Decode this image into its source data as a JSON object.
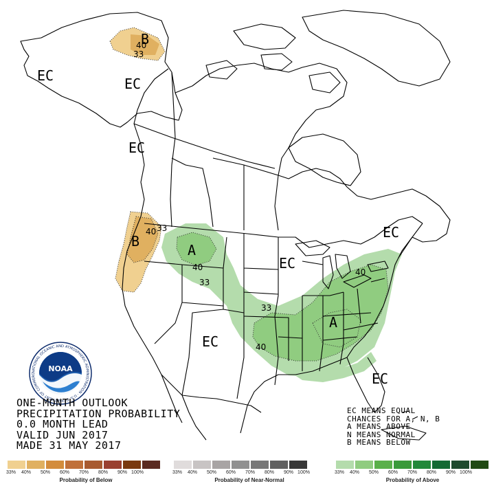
{
  "labels": {
    "ec_alaska_west": "EC",
    "ec_alaska": "EC",
    "ec_bc_coast": "EC",
    "ec_midwest": "EC",
    "ec_southwest": "EC",
    "ec_maine": "EC",
    "ec_florida": "EC",
    "b_alaska": "B",
    "b_northwest": "B",
    "a_montana": "A",
    "a_southeast": "A"
  },
  "contours": {
    "ak_40": "40",
    "ak_33": "33",
    "nw_40": "40",
    "nw_33": "33",
    "mt_40": "40",
    "plains_33": "33",
    "central_33": "33",
    "ne_40": "40",
    "se_40": "40"
  },
  "title_lines": [
    "ONE-MONTH OUTLOOK",
    "PRECIPITATION PROBABILITY",
    "0.0 MONTH LEAD",
    "VALID JUN 2017",
    "MADE 31 MAY 2017"
  ],
  "key_lines": [
    "EC MEANS EQUAL",
    "CHANCES FOR A, N, B",
    "A MEANS ABOVE",
    "N MEANS NORMAL",
    "B MEANS BELOW"
  ],
  "logo": {
    "center_text": "NOAA",
    "ring_text": "NATIONAL OCEANIC AND ATMOSPHERIC ADMINISTRATION · U.S. DEPARTMENT OF COMMERCE"
  },
  "legend": {
    "below": {
      "caption": "Probability of Below",
      "colors": [
        "#f0d090",
        "#e0b060",
        "#d38c3c",
        "#c0703a",
        "#a85a30",
        "#9a4030",
        "#7a3a10",
        "#5a2a20"
      ],
      "ticks": [
        "33%",
        "40%",
        "50%",
        "60%",
        "70%",
        "80%",
        "90%",
        "100%"
      ]
    },
    "normal": {
      "caption": "Probability of Near-Normal",
      "colors": [
        "#e0dcdc",
        "#c8c4c4",
        "#a8a4a4",
        "#909090",
        "#787878",
        "#606060",
        "#383838"
      ],
      "ticks": [
        "33%",
        "40%",
        "50%",
        "60%",
        "70%",
        "80%",
        "90%",
        "100%"
      ]
    },
    "above": {
      "caption": "Probability of Above",
      "colors": [
        "#b4dcac",
        "#90cc80",
        "#5ab04a",
        "#3a9a3a",
        "#22883a",
        "#146a34",
        "#1e4a2e",
        "#204a14"
      ],
      "ticks": [
        "33%",
        "40%",
        "50%",
        "60%",
        "70%",
        "80%",
        "90%",
        "100%"
      ]
    }
  },
  "colors": {
    "below_33": "#f0d090",
    "below_40": "#e0b060",
    "above_33": "#b4dcac",
    "above_40": "#90cc80",
    "border": "#000000"
  }
}
